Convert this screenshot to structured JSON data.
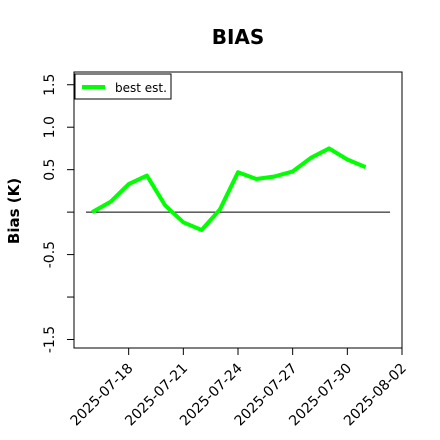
{
  "chart_data": {
    "type": "line",
    "title": "BIAS",
    "xlabel": "",
    "ylabel": "Bias (K)",
    "ylim": [
      -1.6,
      1.65
    ],
    "xlim": [
      "2025-07-15",
      "2025-08-02"
    ],
    "x_ticks": [
      "2025-07-18",
      "2025-07-21",
      "2025-07-24",
      "2025-07-27",
      "2025-07-30",
      "2025-08-02"
    ],
    "y_ticks": [
      -1.5,
      -1.0,
      -0.5,
      0.0,
      0.5,
      1.0,
      1.5
    ],
    "y_tick_labels": [
      "-1.5",
      "",
      "-0.5",
      "",
      "0.5",
      "1.0",
      "1.5"
    ],
    "reference_line": 0.0,
    "legend_position": "top-left",
    "grid": false,
    "series": [
      {
        "name": "best est.",
        "color": "#00ff00",
        "x": [
          "2025-07-16",
          "2025-07-17",
          "2025-07-18",
          "2025-07-19",
          "2025-07-20",
          "2025-07-21",
          "2025-07-22",
          "2025-07-23",
          "2025-07-24",
          "2025-07-25",
          "2025-07-26",
          "2025-07-27",
          "2025-07-28",
          "2025-07-29",
          "2025-07-30",
          "2025-07-31"
        ],
        "values": [
          0.0,
          0.12,
          0.33,
          0.43,
          0.08,
          -0.12,
          -0.21,
          0.03,
          0.47,
          0.39,
          0.42,
          0.48,
          0.64,
          0.75,
          0.62,
          0.53
        ]
      }
    ],
    "reference_color": "#000000"
  }
}
